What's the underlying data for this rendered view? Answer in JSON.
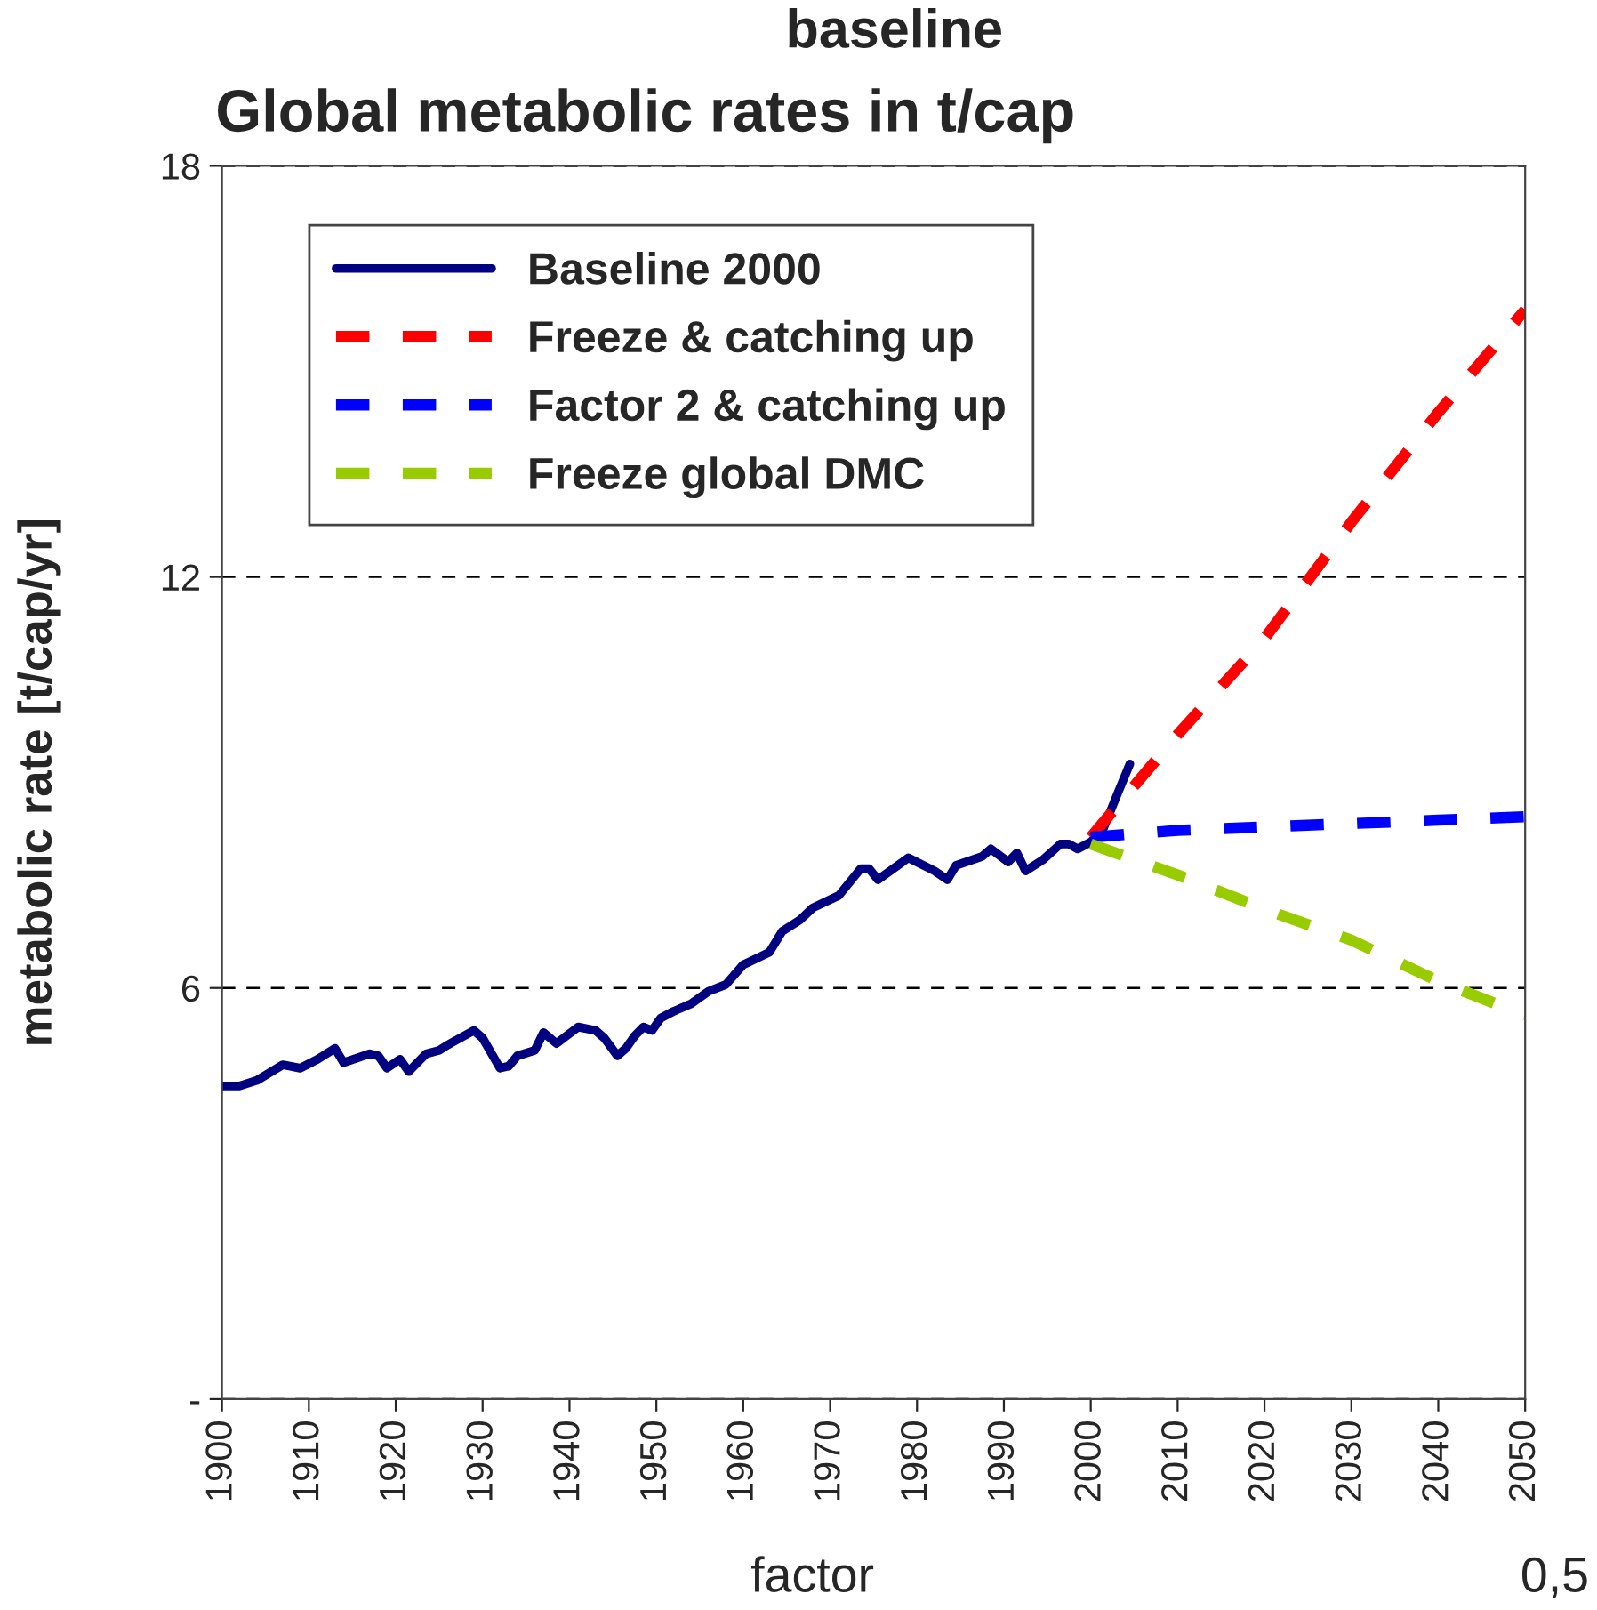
{
  "chart_data": {
    "type": "line",
    "title": "Global metabolic rates in t/cap",
    "ylabel": "metabolic rate [t/cap/yr]",
    "annotations": [
      "baseline",
      "factor",
      "0,5"
    ],
    "xlim": [
      1900,
      2050
    ],
    "xticks": [
      1900,
      1910,
      1920,
      1930,
      1940,
      1950,
      1960,
      1970,
      1980,
      1990,
      2000,
      2010,
      2020,
      2030,
      2040,
      2050
    ],
    "ylim": [
      0,
      18
    ],
    "yticks": [
      {
        "value": 0,
        "label": "-"
      },
      6,
      12,
      18
    ],
    "grid": "y",
    "legend": "top left",
    "marker": "none",
    "series": [
      {
        "name": "Baseline 2000",
        "color": "#000080",
        "line_style": "solid",
        "x": [
          1900,
          1902,
          1904,
          1907,
          1909,
          1911,
          1913,
          1914,
          1917,
          1918,
          1919,
          1920.5,
          1921.5,
          1923.5,
          1925,
          1926,
          1929,
          1930,
          1932,
          1933,
          1934,
          1936,
          1937,
          1938.5,
          1941,
          1943,
          1944,
          1945.5,
          1946.5,
          1947.5,
          1948.5,
          1949.5,
          1950.5,
          1952,
          1954,
          1956,
          1958,
          1960,
          1963,
          1964.5,
          1966.5,
          1968,
          1971,
          1973.5,
          1974.5,
          1975.5,
          1979,
          1982,
          1983.5,
          1984.5,
          1987.5,
          1988.5,
          1990.5,
          1991.5,
          1992.5,
          1994.5,
          1996.5,
          1997.5,
          1998.5,
          2000,
          2001.5,
          2003,
          2004.5
        ],
        "values": [
          4.57,
          4.57,
          4.65,
          4.88,
          4.83,
          4.96,
          5.12,
          4.91,
          5.04,
          5.01,
          4.83,
          4.96,
          4.78,
          5.04,
          5.09,
          5.17,
          5.38,
          5.27,
          4.83,
          4.86,
          5.01,
          5.09,
          5.35,
          5.19,
          5.43,
          5.38,
          5.27,
          5.01,
          5.12,
          5.3,
          5.43,
          5.38,
          5.56,
          5.66,
          5.77,
          5.95,
          6.05,
          6.34,
          6.52,
          6.83,
          6.99,
          7.17,
          7.35,
          7.74,
          7.74,
          7.58,
          7.9,
          7.71,
          7.58,
          7.79,
          7.92,
          8.03,
          7.84,
          7.97,
          7.71,
          7.87,
          8.1,
          8.1,
          8.03,
          8.13,
          8.34,
          8.81,
          9.27
        ]
      },
      {
        "name": "Freeze & catching up",
        "color": "#ff0000",
        "line_style": "dashed",
        "x": [
          2000,
          2010,
          2020,
          2030,
          2040,
          2050
        ],
        "values": [
          8.2,
          9.7,
          11.1,
          12.8,
          14.4,
          15.9
        ]
      },
      {
        "name": "Factor 2 & catching up",
        "color": "#0000ff",
        "line_style": "dashed",
        "x": [
          2000,
          2010,
          2020,
          2030,
          2040,
          2050
        ],
        "values": [
          8.2,
          8.3,
          8.35,
          8.4,
          8.45,
          8.5
        ]
      },
      {
        "name": "Freeze global DMC",
        "color": "#99cc00",
        "line_style": "dashed",
        "x": [
          2000,
          2010,
          2020,
          2030,
          2040,
          2050
        ],
        "values": [
          8.1,
          7.65,
          7.15,
          6.7,
          6.1,
          5.6
        ]
      }
    ]
  }
}
